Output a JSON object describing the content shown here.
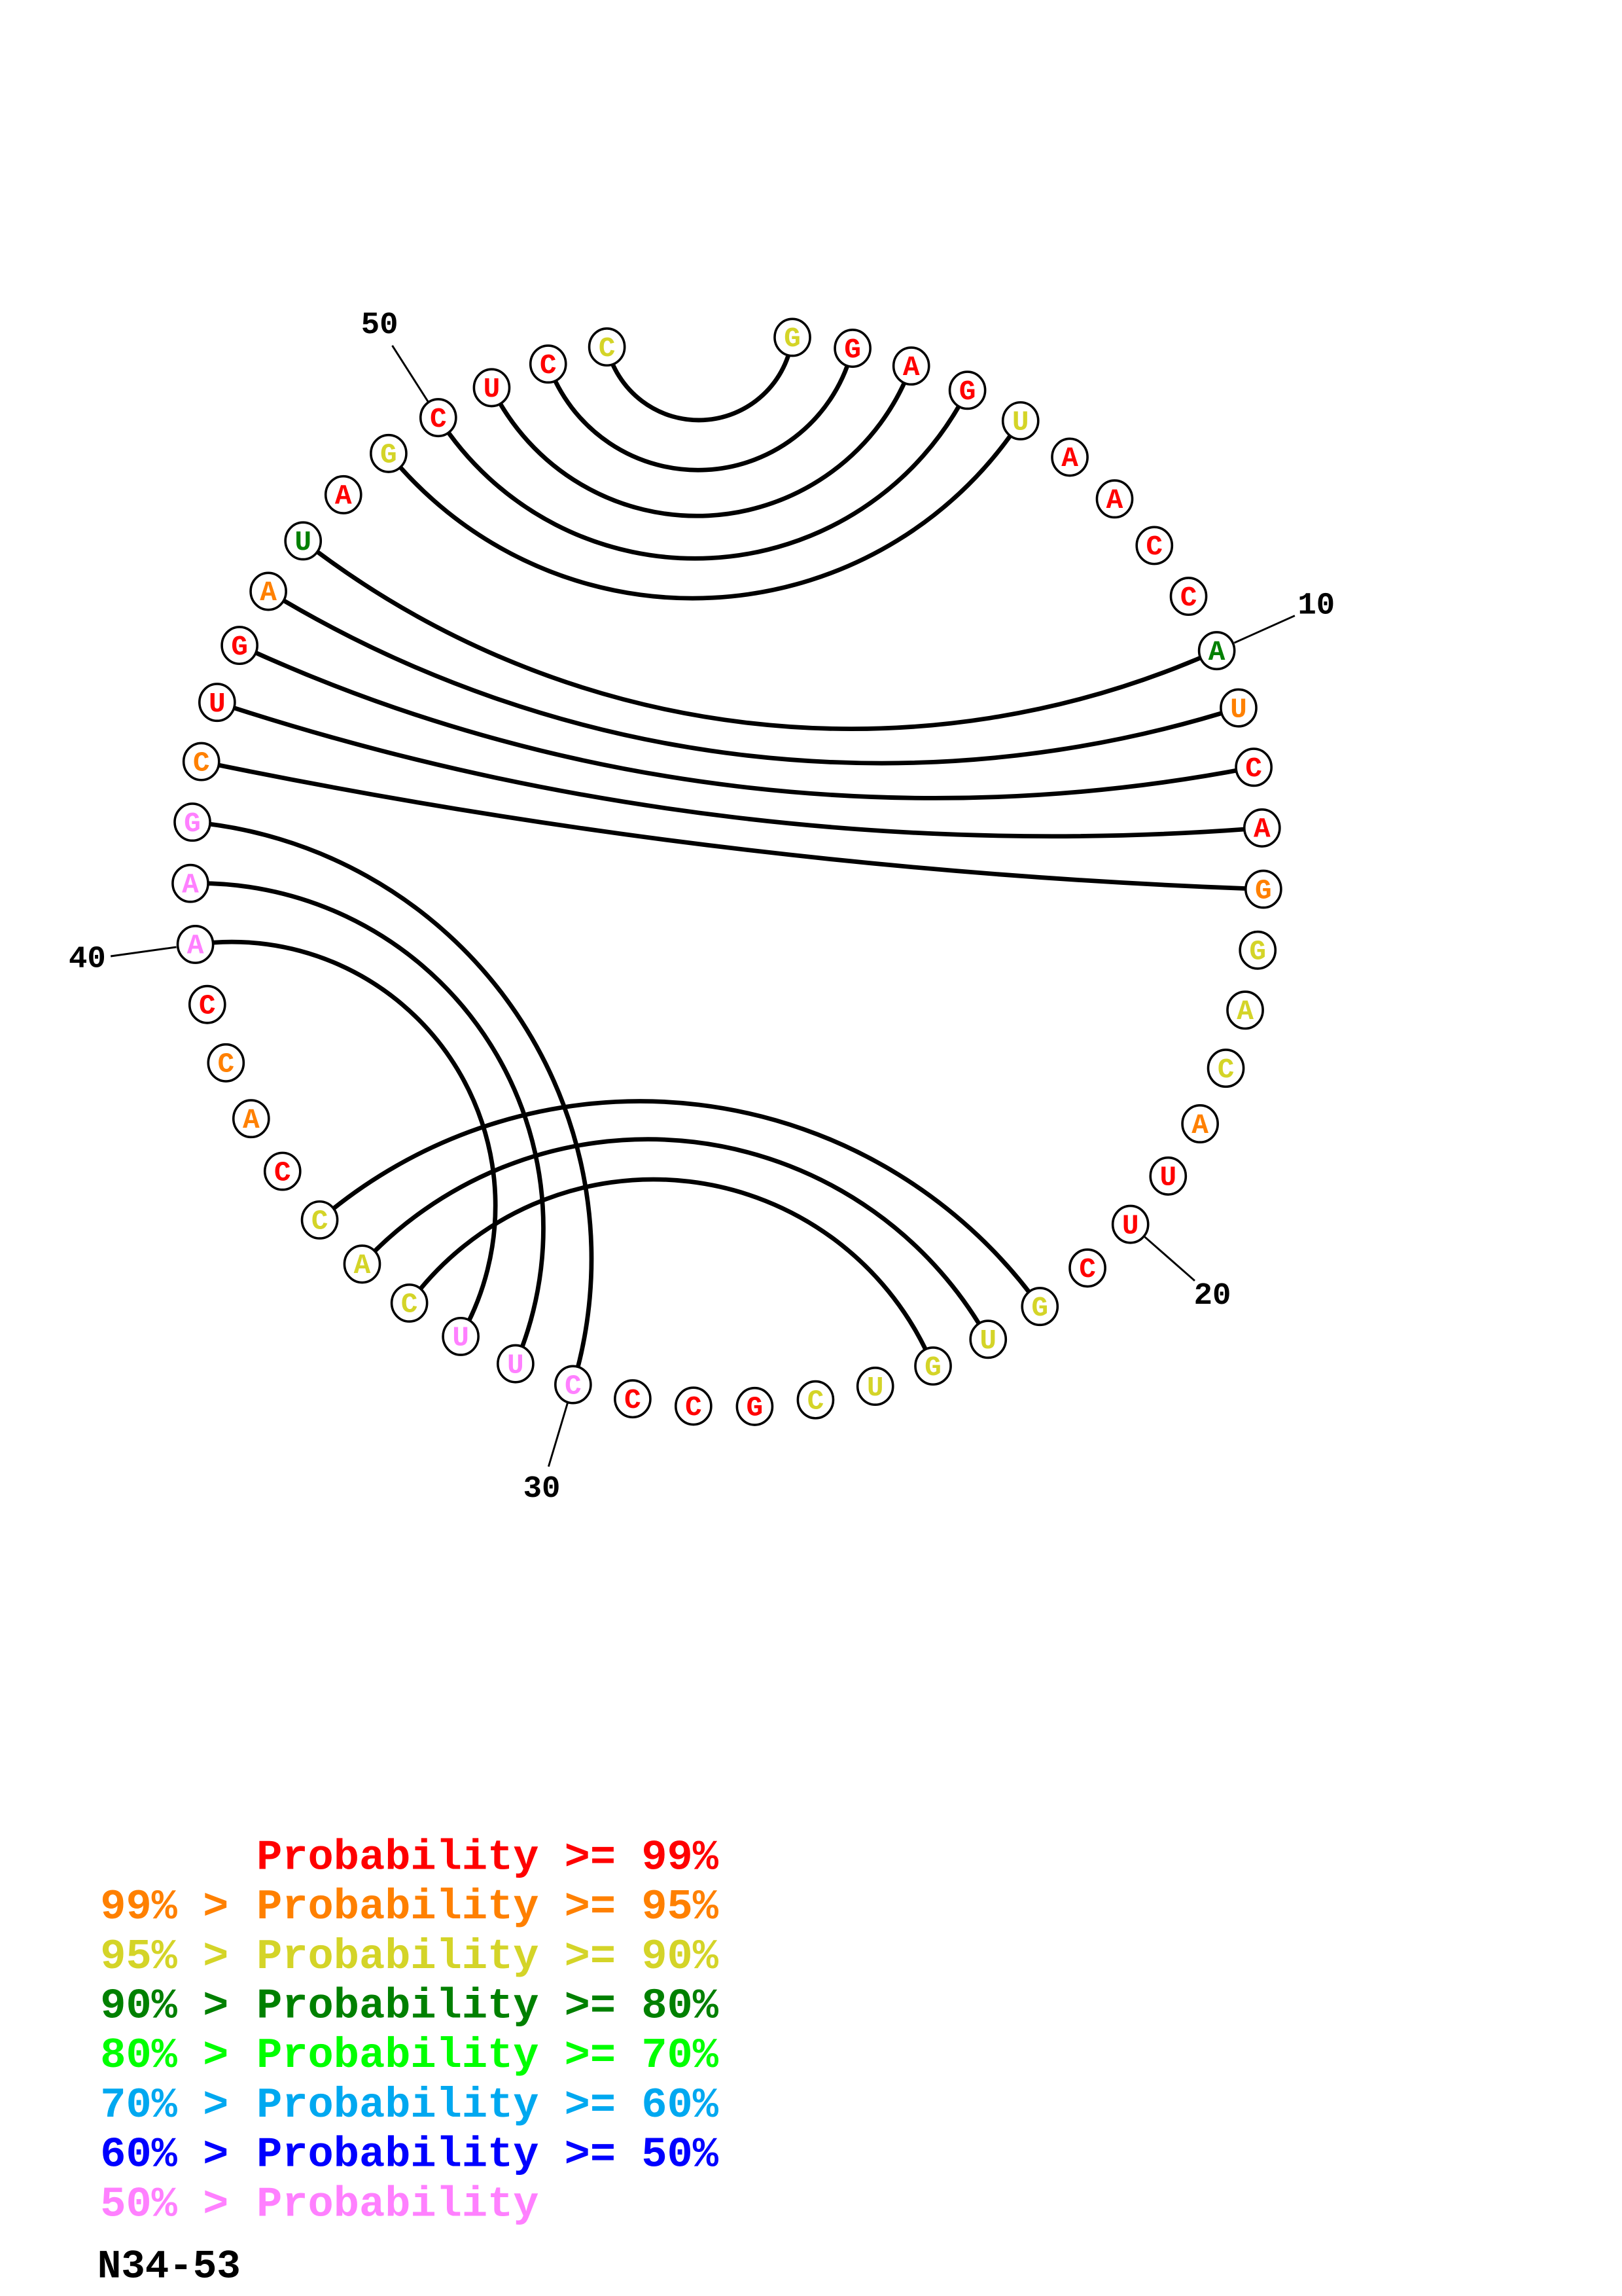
{
  "colors": {
    "red": "#ff0000",
    "orange": "#ff8000",
    "yellow": "#d4d428",
    "darkgreen": "#008000",
    "green": "#00ff00",
    "cyan": "#00a8f0",
    "blue": "#0000ff",
    "pink": "#ff80ff"
  },
  "sequence": [
    {
      "n": 1,
      "base": "G",
      "color": "yellow"
    },
    {
      "n": 2,
      "base": "G",
      "color": "red"
    },
    {
      "n": 3,
      "base": "A",
      "color": "red"
    },
    {
      "n": 4,
      "base": "G",
      "color": "red"
    },
    {
      "n": 5,
      "base": "U",
      "color": "yellow"
    },
    {
      "n": 6,
      "base": "A",
      "color": "red"
    },
    {
      "n": 7,
      "base": "A",
      "color": "red"
    },
    {
      "n": 8,
      "base": "C",
      "color": "red"
    },
    {
      "n": 9,
      "base": "C",
      "color": "red"
    },
    {
      "n": 10,
      "base": "A",
      "color": "darkgreen"
    },
    {
      "n": 11,
      "base": "U",
      "color": "orange"
    },
    {
      "n": 12,
      "base": "C",
      "color": "red"
    },
    {
      "n": 13,
      "base": "A",
      "color": "red"
    },
    {
      "n": 14,
      "base": "G",
      "color": "orange"
    },
    {
      "n": 15,
      "base": "G",
      "color": "yellow"
    },
    {
      "n": 16,
      "base": "A",
      "color": "yellow"
    },
    {
      "n": 17,
      "base": "C",
      "color": "yellow"
    },
    {
      "n": 18,
      "base": "A",
      "color": "orange"
    },
    {
      "n": 19,
      "base": "U",
      "color": "red"
    },
    {
      "n": 20,
      "base": "U",
      "color": "red"
    },
    {
      "n": 21,
      "base": "C",
      "color": "red"
    },
    {
      "n": 22,
      "base": "G",
      "color": "yellow"
    },
    {
      "n": 23,
      "base": "U",
      "color": "yellow"
    },
    {
      "n": 24,
      "base": "G",
      "color": "yellow"
    },
    {
      "n": 25,
      "base": "U",
      "color": "yellow"
    },
    {
      "n": 26,
      "base": "C",
      "color": "yellow"
    },
    {
      "n": 27,
      "base": "G",
      "color": "red"
    },
    {
      "n": 28,
      "base": "C",
      "color": "red"
    },
    {
      "n": 29,
      "base": "C",
      "color": "red"
    },
    {
      "n": 30,
      "base": "C",
      "color": "pink"
    },
    {
      "n": 31,
      "base": "U",
      "color": "pink"
    },
    {
      "n": 32,
      "base": "U",
      "color": "pink"
    },
    {
      "n": 33,
      "base": "C",
      "color": "yellow"
    },
    {
      "n": 34,
      "base": "A",
      "color": "yellow"
    },
    {
      "n": 35,
      "base": "C",
      "color": "yellow"
    },
    {
      "n": 36,
      "base": "C",
      "color": "red"
    },
    {
      "n": 37,
      "base": "A",
      "color": "orange"
    },
    {
      "n": 38,
      "base": "C",
      "color": "orange"
    },
    {
      "n": 39,
      "base": "C",
      "color": "red"
    },
    {
      "n": 40,
      "base": "A",
      "color": "pink"
    },
    {
      "n": 41,
      "base": "A",
      "color": "pink"
    },
    {
      "n": 42,
      "base": "G",
      "color": "pink"
    },
    {
      "n": 43,
      "base": "C",
      "color": "orange"
    },
    {
      "n": 44,
      "base": "U",
      "color": "red"
    },
    {
      "n": 45,
      "base": "G",
      "color": "red"
    },
    {
      "n": 46,
      "base": "A",
      "color": "orange"
    },
    {
      "n": 47,
      "base": "U",
      "color": "darkgreen"
    },
    {
      "n": 48,
      "base": "A",
      "color": "red"
    },
    {
      "n": 49,
      "base": "G",
      "color": "yellow"
    },
    {
      "n": 50,
      "base": "C",
      "color": "red"
    },
    {
      "n": 51,
      "base": "U",
      "color": "red"
    },
    {
      "n": 52,
      "base": "C",
      "color": "red"
    },
    {
      "n": 53,
      "base": "C",
      "color": "yellow"
    }
  ],
  "pairs": [
    [
      1,
      53
    ],
    [
      2,
      52
    ],
    [
      3,
      51
    ],
    [
      4,
      50
    ],
    [
      5,
      49
    ],
    [
      10,
      47
    ],
    [
      11,
      46
    ],
    [
      12,
      45
    ],
    [
      13,
      44
    ],
    [
      14,
      43
    ],
    [
      30,
      42
    ],
    [
      31,
      41
    ],
    [
      32,
      40
    ],
    [
      22,
      35
    ],
    [
      23,
      34
    ],
    [
      24,
      33
    ]
  ],
  "position_labels": [
    "10",
    "20",
    "30",
    "40",
    "50"
  ],
  "legend": [
    {
      "prefix": "",
      "body": "Probability >= 99%",
      "color": "red"
    },
    {
      "prefix": "99% > ",
      "body": "Probability >= 95%",
      "color": "orange"
    },
    {
      "prefix": "95% > ",
      "body": "Probability >= 90%",
      "color": "yellow"
    },
    {
      "prefix": "90% > ",
      "body": "Probability >= 80%",
      "color": "darkgreen"
    },
    {
      "prefix": "80% > ",
      "body": "Probability >= 70%",
      "color": "green"
    },
    {
      "prefix": "70% > ",
      "body": "Probability >= 60%",
      "color": "cyan"
    },
    {
      "prefix": "60% > ",
      "body": "Probability >= 50%",
      "color": "blue"
    },
    {
      "prefix": "50% > ",
      "body": "Probability",
      "color": "pink"
    }
  ],
  "title": "N34-53"
}
